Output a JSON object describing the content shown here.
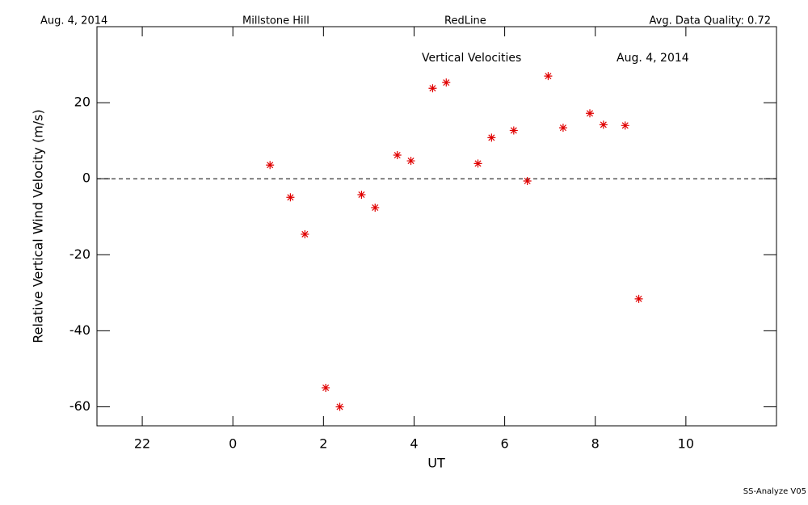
{
  "header": {
    "date": "Aug. 4, 2014",
    "site": "Millstone Hill",
    "instrument": "RedLine",
    "quality": "Avg. Data Quality: 0.72"
  },
  "footer": "SS-Analyze V05",
  "chart_data": {
    "type": "scatter",
    "title": "Vertical Velocities",
    "annotation": "Aug. 4, 2014",
    "xlabel": "UT",
    "ylabel": "Relative Vertical Wind Velocity (m/s)",
    "series": [
      {
        "name": "Vertical Velocities",
        "color": "#e00000",
        "x": [
          0.82,
          1.27,
          1.59,
          2.05,
          2.36,
          2.84,
          3.14,
          3.63,
          3.93,
          4.41,
          4.71,
          5.41,
          5.71,
          6.2,
          6.5,
          6.96,
          7.29,
          7.88,
          8.18,
          8.66,
          8.96
        ],
        "values": [
          3.6,
          -4.9,
          -14.6,
          -55,
          -60,
          -4.2,
          -7.6,
          6.2,
          4.7,
          23.8,
          25.3,
          4.0,
          10.8,
          12.7,
          -0.6,
          27.0,
          13.4,
          17.2,
          14.2,
          14.0,
          -31.6
        ]
      }
    ],
    "xlim": [
      -3,
      12
    ],
    "xticks": [
      {
        "value": -2,
        "label": "22"
      },
      0,
      2,
      4,
      6,
      8,
      10
    ],
    "ylim": [
      -65,
      40
    ],
    "yticks": [
      -60,
      -40,
      -20,
      0,
      20
    ],
    "hline": 0
  }
}
